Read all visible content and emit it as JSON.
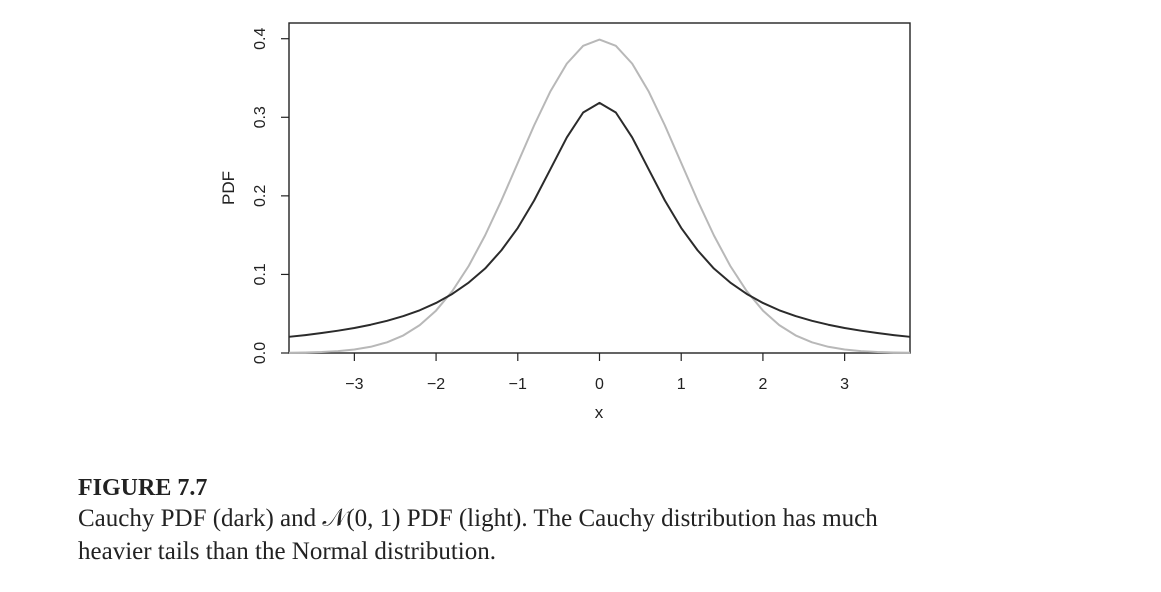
{
  "chart_data": {
    "type": "line",
    "title": "",
    "xlabel": "x",
    "ylabel": "PDF",
    "xlim": [
      -3.8,
      3.8
    ],
    "ylim": [
      0,
      0.42
    ],
    "x_ticks": [
      "−3",
      "−2",
      "−1",
      "0",
      "1",
      "2",
      "3"
    ],
    "x_tick_values": [
      -3,
      -2,
      -1,
      0,
      1,
      2,
      3
    ],
    "y_ticks": [
      "0.0",
      "0.1",
      "0.2",
      "0.3",
      "0.4"
    ],
    "y_tick_values": [
      0,
      0.1,
      0.2,
      0.3,
      0.4
    ],
    "grid": false,
    "legend": "none",
    "series": [
      {
        "color": "#2b2b2b",
        "x": [
          -3.8,
          -3.6,
          -3.4,
          -3.2,
          -3.0,
          -2.8,
          -2.6,
          -2.4,
          -2.2,
          -2.0,
          -1.8,
          -1.6,
          -1.4,
          -1.2,
          -1.0,
          -0.8,
          -0.6,
          -0.4,
          -0.2,
          0.0,
          0.2,
          0.4,
          0.6,
          0.8,
          1.0,
          1.2,
          1.4,
          1.6,
          1.8,
          2.0,
          2.2,
          2.4,
          2.6,
          2.8,
          3.0,
          3.2,
          3.4,
          3.6,
          3.8
        ],
        "y": [
          0.0206,
          0.0228,
          0.0254,
          0.0284,
          0.0318,
          0.036,
          0.041,
          0.047,
          0.0544,
          0.0637,
          0.0753,
          0.0897,
          0.1075,
          0.1308,
          0.1592,
          0.1941,
          0.2341,
          0.2744,
          0.3061,
          0.3183,
          0.3061,
          0.2744,
          0.2341,
          0.1941,
          0.1592,
          0.1308,
          0.1075,
          0.0897,
          0.0753,
          0.0637,
          0.0544,
          0.047,
          0.041,
          0.036,
          0.0318,
          0.0284,
          0.0254,
          0.0228,
          0.0206
        ]
      },
      {
        "color": "#b8b8b8",
        "x": [
          -3.8,
          -3.6,
          -3.4,
          -3.2,
          -3.0,
          -2.8,
          -2.6,
          -2.4,
          -2.2,
          -2.0,
          -1.8,
          -1.6,
          -1.4,
          -1.2,
          -1.0,
          -0.8,
          -0.6,
          -0.4,
          -0.2,
          0.0,
          0.2,
          0.4,
          0.6,
          0.8,
          1.0,
          1.2,
          1.4,
          1.6,
          1.8,
          2.0,
          2.2,
          2.4,
          2.6,
          2.8,
          3.0,
          3.2,
          3.4,
          3.6,
          3.8
        ],
        "y": [
          0.0003,
          0.0006,
          0.0012,
          0.0024,
          0.0044,
          0.0079,
          0.0136,
          0.0224,
          0.0355,
          0.054,
          0.079,
          0.1109,
          0.1497,
          0.1942,
          0.242,
          0.2897,
          0.3332,
          0.3683,
          0.391,
          0.3989,
          0.391,
          0.3683,
          0.3332,
          0.2897,
          0.242,
          0.1942,
          0.1497,
          0.1109,
          0.079,
          0.054,
          0.0355,
          0.0224,
          0.0136,
          0.0079,
          0.0044,
          0.0024,
          0.0012,
          0.0006,
          0.0003
        ]
      }
    ]
  },
  "caption": {
    "label": "FIGURE 7.7",
    "text_line1": "Cauchy PDF (dark) and 𝒩(0, 1) PDF (light). The Cauchy distribution has much",
    "text_line2": "heavier tails than the Normal distribution."
  }
}
